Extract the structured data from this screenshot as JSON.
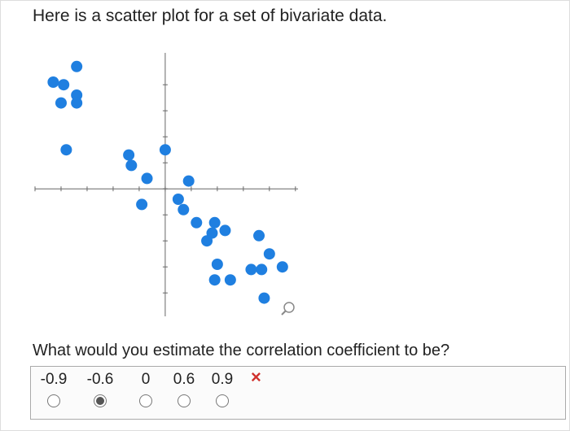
{
  "header": "Here is a scatter plot for a set of bivariate data.",
  "chart_data": {
    "type": "scatter",
    "color": "#1f7fe0",
    "x": [
      -3.4,
      -4.3,
      -3.9,
      -3.4,
      -4.0,
      -3.4,
      -3.8,
      -1.4,
      -1.3,
      0,
      -0.7,
      0.9,
      -0.9,
      0.5,
      0.7,
      1.2,
      1.9,
      2.3,
      1.8,
      1.6,
      3.6,
      4.0,
      2.0,
      3.3,
      3.7,
      4.5,
      1.9,
      2.5,
      3.8
    ],
    "y": [
      4.7,
      4.1,
      4.0,
      3.6,
      3.3,
      3.3,
      1.5,
      1.3,
      0.9,
      1.5,
      0.4,
      0.3,
      -0.6,
      -0.4,
      -0.8,
      -1.3,
      -1.3,
      -1.6,
      -1.7,
      -2.0,
      -1.8,
      -2.5,
      -2.9,
      -3.1,
      -3.1,
      -3.0,
      -3.5,
      -3.5,
      -4.2
    ],
    "xlim": [
      -5,
      5.1
    ],
    "ylim": [
      -4.9,
      5.1
    ],
    "xticks": [
      -5,
      -4,
      -3,
      -2,
      -1,
      0,
      1,
      2,
      3,
      4,
      5
    ],
    "yticks": [
      -4,
      -3,
      -2,
      -1,
      0,
      1,
      2,
      3,
      4
    ]
  },
  "question": "What would you estimate the correlation coefficient to be?",
  "options": [
    "-0.9",
    "-0.6",
    "0",
    "0.6",
    "0.9"
  ],
  "selected_option": 1,
  "feedback_mark": "×"
}
